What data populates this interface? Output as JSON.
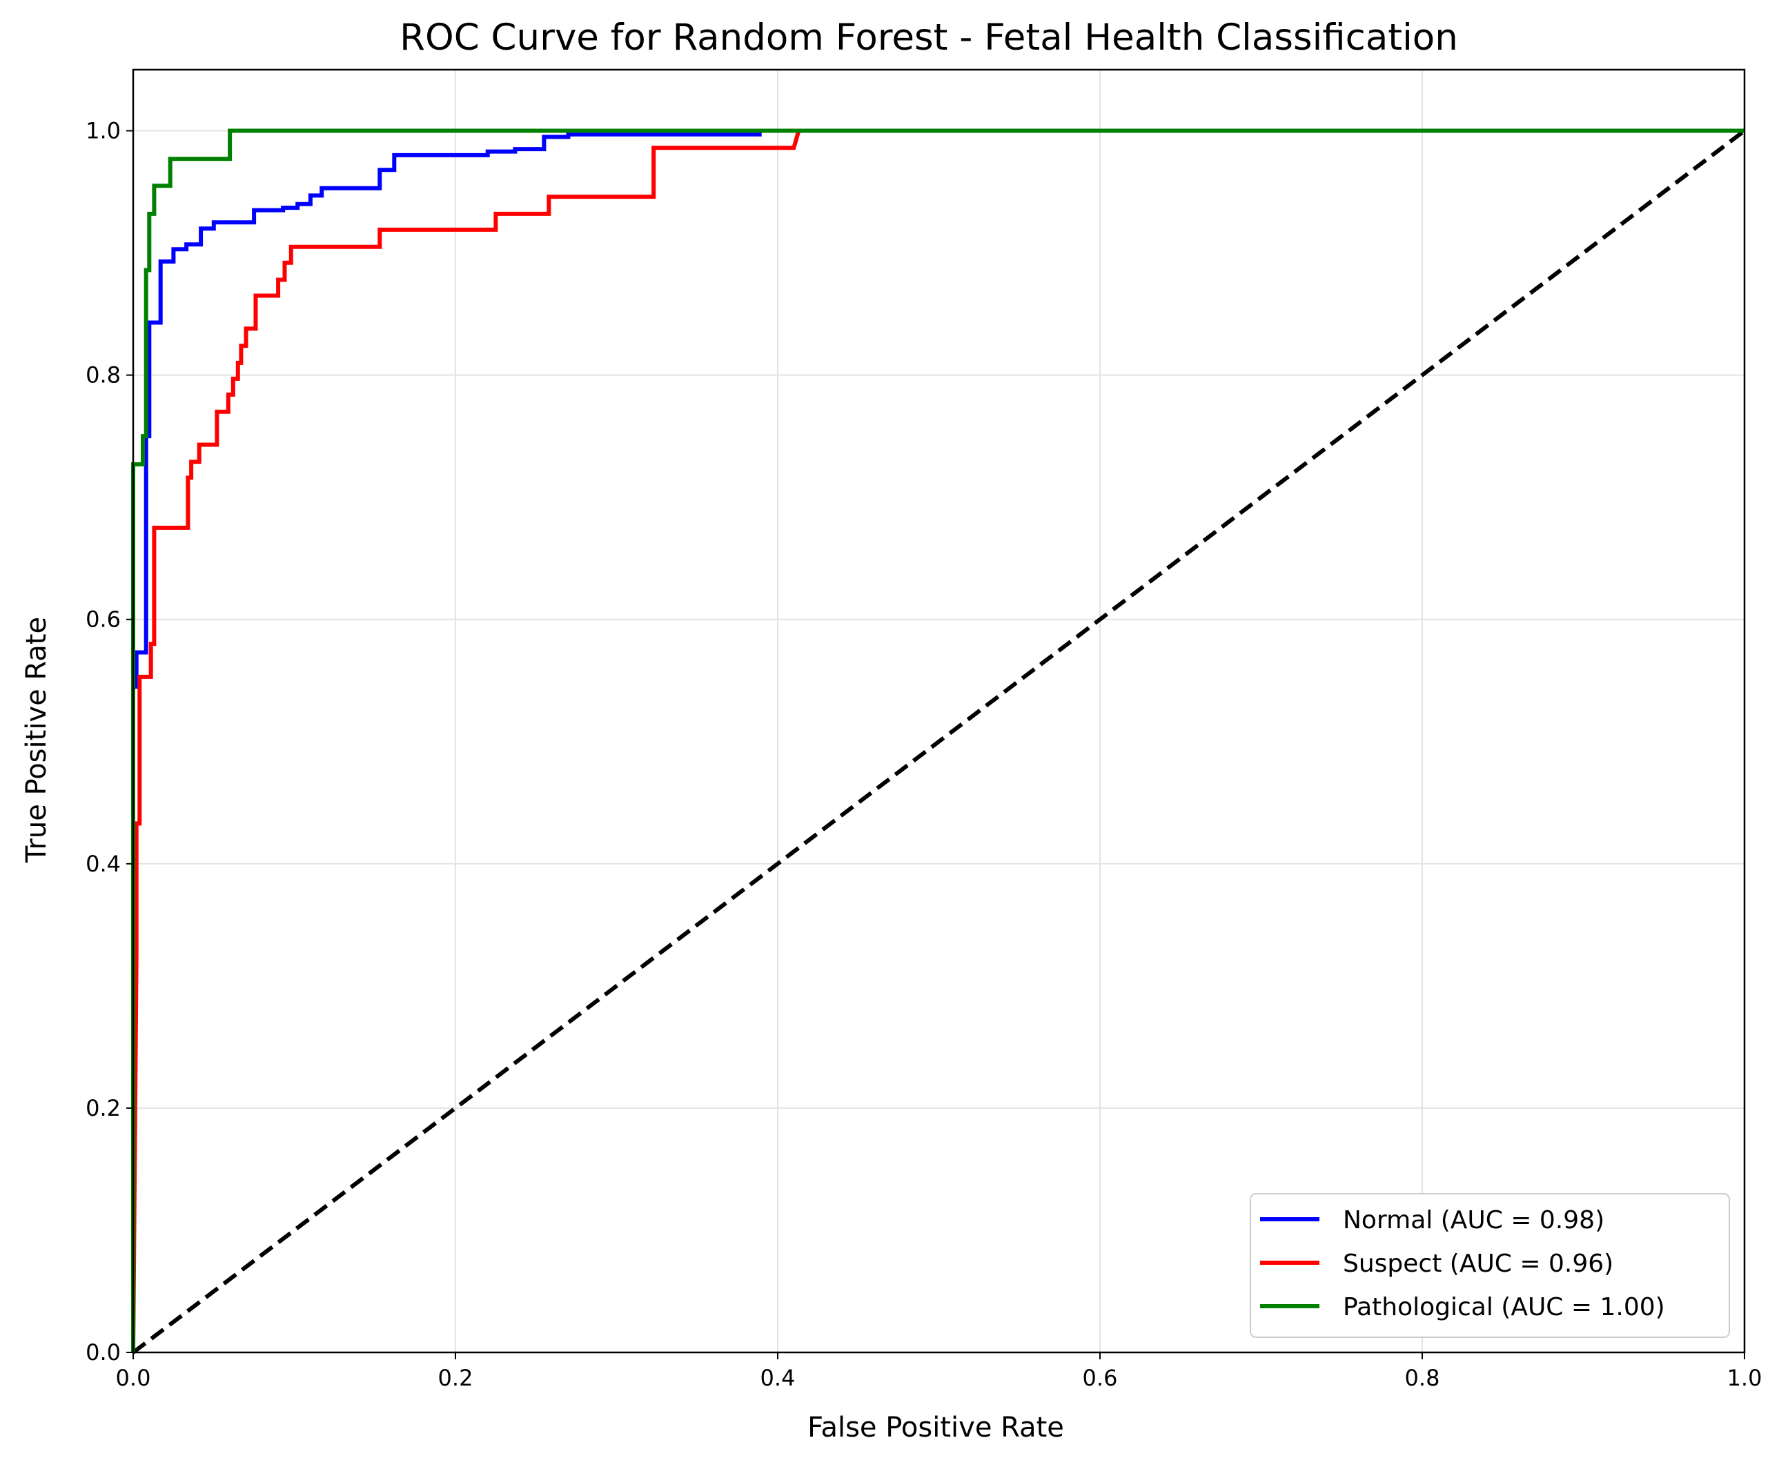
{
  "chart_data": {
    "type": "line",
    "title": "ROC Curve for Random Forest - Fetal Health Classification",
    "xlabel": "False Positive Rate",
    "ylabel": "True Positive Rate",
    "xlim": [
      0.0,
      1.0
    ],
    "ylim": [
      0.0,
      1.05
    ],
    "xticks": [
      "0.0",
      "0.2",
      "0.4",
      "0.6",
      "0.8",
      "1.0"
    ],
    "yticks": [
      "0.0",
      "0.2",
      "0.4",
      "0.6",
      "0.8",
      "1.0"
    ],
    "grid": true,
    "legend_position": "lower-right",
    "reference_line": {
      "style": "dashed",
      "color": "#000000",
      "points": [
        [
          0,
          0
        ],
        [
          1,
          1
        ]
      ]
    },
    "series": [
      {
        "name": "Normal (AUC = 0.98)",
        "color": "#0000ff",
        "points": [
          [
            0,
            0
          ],
          [
            0,
            0.545
          ],
          [
            0.002,
            0.545
          ],
          [
            0.002,
            0.573
          ],
          [
            0.008,
            0.573
          ],
          [
            0.008,
            0.75
          ],
          [
            0.01,
            0.75
          ],
          [
            0.01,
            0.843
          ],
          [
            0.017,
            0.843
          ],
          [
            0.017,
            0.893
          ],
          [
            0.025,
            0.893
          ],
          [
            0.025,
            0.903
          ],
          [
            0.033,
            0.903
          ],
          [
            0.033,
            0.907
          ],
          [
            0.042,
            0.907
          ],
          [
            0.042,
            0.92
          ],
          [
            0.05,
            0.92
          ],
          [
            0.05,
            0.925
          ],
          [
            0.075,
            0.925
          ],
          [
            0.075,
            0.935
          ],
          [
            0.093,
            0.935
          ],
          [
            0.093,
            0.937
          ],
          [
            0.102,
            0.937
          ],
          [
            0.102,
            0.94
          ],
          [
            0.11,
            0.94
          ],
          [
            0.11,
            0.947
          ],
          [
            0.117,
            0.947
          ],
          [
            0.117,
            0.953
          ],
          [
            0.153,
            0.953
          ],
          [
            0.153,
            0.968
          ],
          [
            0.162,
            0.968
          ],
          [
            0.162,
            0.98
          ],
          [
            0.22,
            0.98
          ],
          [
            0.22,
            0.983
          ],
          [
            0.237,
            0.983
          ],
          [
            0.237,
            0.985
          ],
          [
            0.255,
            0.985
          ],
          [
            0.255,
            0.995
          ],
          [
            0.27,
            0.995
          ],
          [
            0.27,
            0.997
          ],
          [
            0.39,
            0.997
          ]
        ]
      },
      {
        "name": "Suspect (AUC = 0.96)",
        "color": "#ff0000",
        "points": [
          [
            0,
            0
          ],
          [
            0.002,
            0.325
          ],
          [
            0.002,
            0.433
          ],
          [
            0.004,
            0.433
          ],
          [
            0.004,
            0.553
          ],
          [
            0.011,
            0.553
          ],
          [
            0.011,
            0.58
          ],
          [
            0.013,
            0.58
          ],
          [
            0.013,
            0.675
          ],
          [
            0.034,
            0.675
          ],
          [
            0.034,
            0.716
          ],
          [
            0.036,
            0.716
          ],
          [
            0.036,
            0.729
          ],
          [
            0.041,
            0.729
          ],
          [
            0.041,
            0.743
          ],
          [
            0.052,
            0.743
          ],
          [
            0.052,
            0.77
          ],
          [
            0.059,
            0.77
          ],
          [
            0.059,
            0.784
          ],
          [
            0.062,
            0.784
          ],
          [
            0.062,
            0.797
          ],
          [
            0.065,
            0.797
          ],
          [
            0.065,
            0.81
          ],
          [
            0.067,
            0.81
          ],
          [
            0.067,
            0.824
          ],
          [
            0.07,
            0.824
          ],
          [
            0.07,
            0.838
          ],
          [
            0.076,
            0.838
          ],
          [
            0.076,
            0.865
          ],
          [
            0.09,
            0.865
          ],
          [
            0.09,
            0.878
          ],
          [
            0.094,
            0.878
          ],
          [
            0.094,
            0.892
          ],
          [
            0.098,
            0.892
          ],
          [
            0.098,
            0.905
          ],
          [
            0.153,
            0.905
          ],
          [
            0.153,
            0.919
          ],
          [
            0.225,
            0.919
          ],
          [
            0.225,
            0.932
          ],
          [
            0.258,
            0.932
          ],
          [
            0.258,
            0.946
          ],
          [
            0.323,
            0.946
          ],
          [
            0.323,
            0.986
          ],
          [
            0.41,
            0.986
          ],
          [
            0.413,
            1.0
          ],
          [
            1.0,
            1.0
          ]
        ]
      },
      {
        "name": "Pathological (AUC = 1.00)",
        "color": "#008000",
        "points": [
          [
            0,
            0
          ],
          [
            0,
            0.727
          ],
          [
            0.006,
            0.727
          ],
          [
            0.006,
            0.75
          ],
          [
            0.008,
            0.75
          ],
          [
            0.008,
            0.886
          ],
          [
            0.01,
            0.886
          ],
          [
            0.01,
            0.932
          ],
          [
            0.013,
            0.932
          ],
          [
            0.013,
            0.955
          ],
          [
            0.023,
            0.955
          ],
          [
            0.023,
            0.977
          ],
          [
            0.06,
            0.977
          ],
          [
            0.06,
            1.0
          ],
          [
            1.0,
            1.0
          ]
        ]
      }
    ]
  }
}
